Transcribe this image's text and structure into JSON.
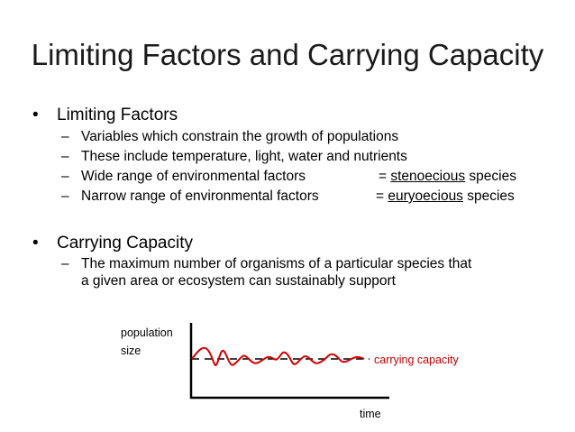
{
  "slide": {
    "title": "Limiting Factors and Carrying Capacity",
    "bullets": [
      {
        "label": "Limiting Factors",
        "subitems": [
          {
            "text": "Variables which constrain the growth of populations"
          },
          {
            "text": "These include temperature, light, water and nutrients"
          },
          {
            "text": "Wide range of environmental factors",
            "eq": "= ",
            "term": "stenoecious",
            "suffix": " species"
          },
          {
            "text": "Narrow range of environmental factors",
            "eq": "= ",
            "term": "euryoecious",
            "suffix": " species"
          }
        ]
      },
      {
        "label": "Carrying Capacity",
        "subitems": [
          {
            "line1": "The maximum number of organisms of a particular species that",
            "line2": "a given area or ecosystem can sustainably support"
          }
        ]
      }
    ],
    "bullet_glyph": "•",
    "dash_glyph": "–"
  },
  "graph": {
    "y_label_line1": "population",
    "y_label_line2": "size",
    "x_label": "time",
    "line_label": "carrying capacity",
    "colors": {
      "curve": "#cc0000",
      "axis": "#000000",
      "dashed": "#000000",
      "label": "#c00000"
    }
  }
}
